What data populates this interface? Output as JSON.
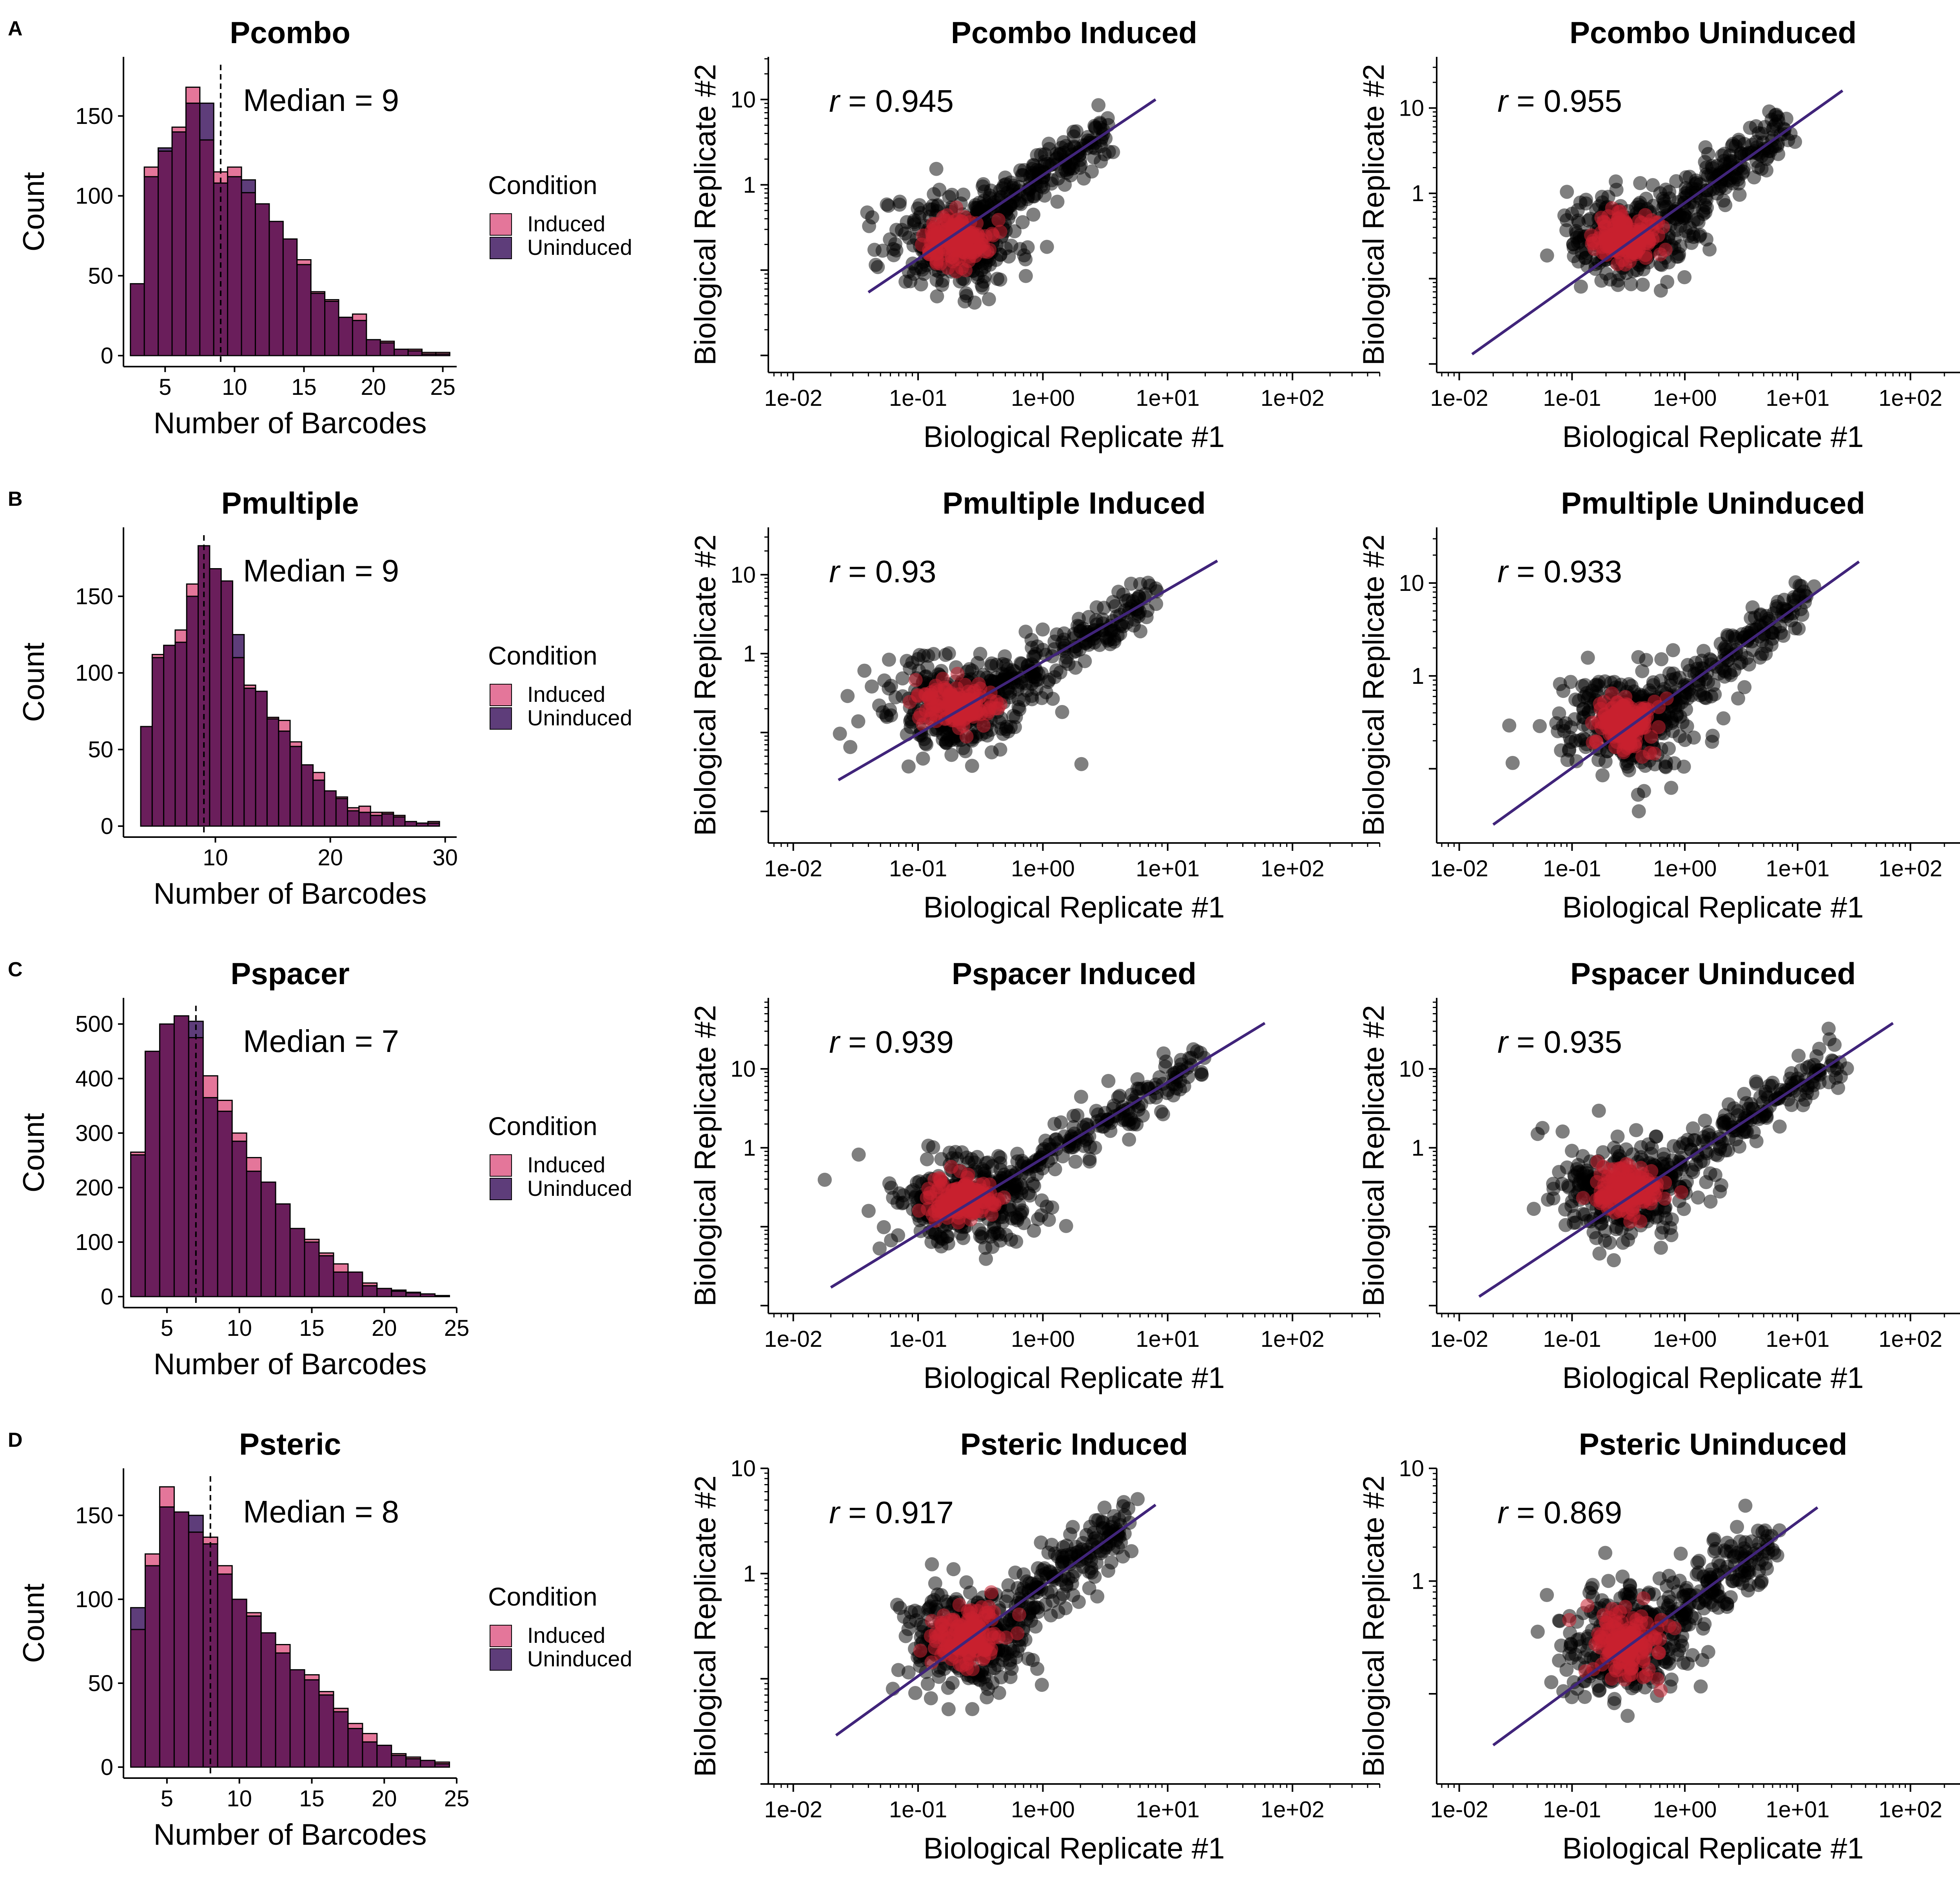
{
  "colors": {
    "induced": "#e4769a",
    "uninduced": "#5e3d7a",
    "overlap": "#6a1e5b",
    "bar_edge": "#000000",
    "point_black": "#000000",
    "point_red": "#c8202f",
    "fit_line": "#40247a"
  },
  "legend": {
    "title": "Condition",
    "items": [
      "Induced",
      "Uninduced"
    ]
  },
  "axes": {
    "hist_x": "Number of Barcodes",
    "hist_y": "Count",
    "scatter_x": "Biological Replicate #1",
    "scatter_y": "Biological Replicate #2"
  },
  "scatter_x_ticks": [
    "1e-02",
    "1e-01",
    "1e+00",
    "1e+01",
    "1e+02"
  ],
  "chart_data": [
    {
      "type": "bar",
      "panel": "A",
      "title": "Pcombo",
      "annotation": "Median = 9",
      "xlabel": "Number of Barcodes",
      "ylabel": "Count",
      "xlim": [
        2,
        26
      ],
      "ylim": [
        0,
        187
      ],
      "median": 9,
      "xticks": [
        5,
        10,
        15,
        20,
        25
      ],
      "yticks": [
        0,
        50,
        100,
        150
      ],
      "bin_start": 2.5,
      "bin_width": 1,
      "series": [
        {
          "name": "Induced",
          "values": [
            45,
            118,
            128,
            143,
            168,
            135,
            115,
            118,
            102,
            95,
            84,
            73,
            60,
            40,
            35,
            24,
            26,
            10,
            9,
            4,
            4,
            2,
            2
          ]
        },
        {
          "name": "Uninduced",
          "values": [
            45,
            112,
            130,
            140,
            158,
            158,
            108,
            112,
            110,
            95,
            84,
            73,
            57,
            39,
            34,
            24,
            22,
            10,
            8,
            4,
            3,
            1,
            1
          ]
        }
      ]
    },
    {
      "type": "scatter",
      "panel": "A",
      "title": "Pcombo Induced",
      "r": "0.945",
      "xlabel": "Biological Replicate #1",
      "ylabel": "Biological Replicate #2",
      "x_log_range": [
        -2.2,
        2.7
      ],
      "y_log_range": [
        -2.2,
        1.5
      ],
      "yticks": [
        1,
        10
      ],
      "fit": [
        [
          0.04,
          0.055
        ],
        [
          8,
          10
        ]
      ],
      "cloud": {
        "center": [
          0.2,
          0.22
        ],
        "x_spread": 0.28,
        "y_spread": 0.28,
        "x_tail": 1.2,
        "y_scatter": 0.16
      }
    },
    {
      "type": "scatter",
      "panel": "A",
      "title": "Pcombo Uninduced",
      "r": "0.955",
      "xlabel": "Biological Replicate #1",
      "ylabel": "Biological Replicate #2",
      "x_log_range": [
        -2.2,
        2.7
      ],
      "y_log_range": [
        -2.1,
        1.6
      ],
      "yticks": [
        1,
        10
      ],
      "fit": [
        [
          0.013,
          0.013
        ],
        [
          25,
          16
        ]
      ],
      "cloud": {
        "center": [
          0.3,
          0.3
        ],
        "x_spread": 0.28,
        "y_spread": 0.26,
        "x_tail": 1.4,
        "y_scatter": 0.16
      }
    },
    {
      "type": "bar",
      "panel": "B",
      "title": "Pmultiple",
      "annotation": "Median = 9",
      "xlabel": "Number of Barcodes",
      "ylabel": "Count",
      "xlim": [
        2,
        31
      ],
      "ylim": [
        0,
        195
      ],
      "median": 9,
      "xticks": [
        10,
        20,
        30
      ],
      "yticks": [
        0,
        50,
        100,
        150
      ],
      "bin_start": 3.5,
      "bin_width": 1,
      "series": [
        {
          "name": "Induced",
          "values": [
            65,
            112,
            118,
            128,
            158,
            183,
            168,
            160,
            110,
            92,
            88,
            71,
            69,
            55,
            40,
            35,
            23,
            19,
            12,
            13,
            9,
            9,
            7,
            3,
            2,
            3
          ]
        },
        {
          "name": "Uninduced",
          "values": [
            65,
            110,
            118,
            120,
            150,
            183,
            168,
            160,
            125,
            90,
            88,
            70,
            62,
            52,
            40,
            30,
            23,
            18,
            10,
            9,
            7,
            8,
            6,
            3,
            2,
            2
          ]
        }
      ]
    },
    {
      "type": "scatter",
      "panel": "B",
      "title": "Pmultiple Induced",
      "r": "0.93",
      "xlabel": "Biological Replicate #1",
      "ylabel": "Biological Replicate #2",
      "x_log_range": [
        -2.2,
        2.7
      ],
      "y_log_range": [
        -2.4,
        1.6
      ],
      "yticks": [
        1,
        10
      ],
      "fit": [
        [
          0.023,
          0.025
        ],
        [
          25,
          15
        ]
      ],
      "cloud": {
        "center": [
          0.2,
          0.22
        ],
        "x_spread": 0.3,
        "y_spread": 0.3,
        "x_tail": 1.6,
        "y_scatter": 0.16
      }
    },
    {
      "type": "scatter",
      "panel": "B",
      "title": "Pmultiple Uninduced",
      "r": "0.933",
      "xlabel": "Biological Replicate #1",
      "ylabel": "Biological Replicate #2",
      "x_log_range": [
        -2.2,
        2.7
      ],
      "y_log_range": [
        -1.8,
        1.6
      ],
      "yticks": [
        1,
        10
      ],
      "fit": [
        [
          0.02,
          0.025
        ],
        [
          35,
          17
        ]
      ],
      "cloud": {
        "center": [
          0.3,
          0.3
        ],
        "x_spread": 0.3,
        "y_spread": 0.28,
        "x_tail": 1.6,
        "y_scatter": 0.16
      }
    },
    {
      "type": "bar",
      "panel": "C",
      "title": "Pspacer",
      "annotation": "Median = 7",
      "xlabel": "Number of Barcodes",
      "ylabel": "Count",
      "xlim": [
        2,
        25
      ],
      "ylim": [
        0,
        548
      ],
      "median": 7,
      "xticks": [
        5,
        10,
        15,
        20,
        25
      ],
      "yticks": [
        0,
        100,
        200,
        300,
        400,
        500
      ],
      "bin_start": 2.5,
      "bin_width": 1,
      "series": [
        {
          "name": "Induced",
          "values": [
            265,
            450,
            500,
            515,
            475,
            405,
            360,
            300,
            255,
            210,
            170,
            125,
            105,
            80,
            60,
            45,
            25,
            15,
            12,
            8,
            5,
            2
          ]
        },
        {
          "name": "Uninduced",
          "values": [
            260,
            450,
            500,
            515,
            505,
            365,
            340,
            285,
            230,
            210,
            170,
            125,
            100,
            75,
            45,
            45,
            20,
            15,
            10,
            7,
            5,
            2
          ]
        }
      ]
    },
    {
      "type": "scatter",
      "panel": "C",
      "title": "Pspacer Induced",
      "r": "0.939",
      "xlabel": "Biological Replicate #1",
      "ylabel": "Biological Replicate #2",
      "x_log_range": [
        -2.2,
        2.7
      ],
      "y_log_range": [
        -2.1,
        1.9
      ],
      "yticks": [
        1,
        10
      ],
      "fit": [
        [
          0.02,
          0.017
        ],
        [
          60,
          38
        ]
      ],
      "cloud": {
        "center": [
          0.22,
          0.23
        ],
        "x_spread": 0.32,
        "y_spread": 0.3,
        "x_tail": 1.9,
        "y_scatter": 0.17
      }
    },
    {
      "type": "scatter",
      "panel": "C",
      "title": "Pspacer Uninduced",
      "r": "0.935",
      "xlabel": "Biological Replicate #1",
      "ylabel": "Biological Replicate #2",
      "x_log_range": [
        -2.2,
        2.7
      ],
      "y_log_range": [
        -2.1,
        1.9
      ],
      "yticks": [
        1,
        10
      ],
      "fit": [
        [
          0.015,
          0.013
        ],
        [
          70,
          38
        ]
      ],
      "cloud": {
        "center": [
          0.3,
          0.28
        ],
        "x_spread": 0.32,
        "y_spread": 0.3,
        "x_tail": 1.9,
        "y_scatter": 0.17
      }
    },
    {
      "type": "bar",
      "panel": "D",
      "title": "Psteric",
      "annotation": "Median = 8",
      "xlabel": "Number of Barcodes",
      "ylabel": "Count",
      "xlim": [
        2,
        25
      ],
      "ylim": [
        0,
        178
      ],
      "median": 8,
      "xticks": [
        5,
        10,
        15,
        20,
        25
      ],
      "yticks": [
        0,
        50,
        100,
        150
      ],
      "bin_start": 2.5,
      "bin_width": 1,
      "series": [
        {
          "name": "Induced",
          "values": [
            82,
            127,
            167,
            152,
            140,
            137,
            120,
            100,
            92,
            80,
            73,
            58,
            55,
            45,
            35,
            26,
            20,
            13,
            8,
            6,
            4,
            3
          ]
        },
        {
          "name": "Uninduced",
          "values": [
            95,
            120,
            155,
            152,
            150,
            133,
            115,
            100,
            90,
            80,
            68,
            58,
            52,
            43,
            33,
            23,
            15,
            13,
            7,
            5,
            4,
            2
          ]
        }
      ]
    },
    {
      "type": "scatter",
      "panel": "D",
      "title": "Psteric Induced",
      "r": "0.917",
      "xlabel": "Biological Replicate #1",
      "ylabel": "Biological Replicate #2",
      "x_log_range": [
        -2.2,
        2.7
      ],
      "y_log_range": [
        -2.0,
        1.0
      ],
      "yticks": [
        1,
        10
      ],
      "fit": [
        [
          0.022,
          0.029
        ],
        [
          8,
          4.5
        ]
      ],
      "cloud": {
        "center": [
          0.25,
          0.25
        ],
        "x_spread": 0.26,
        "y_spread": 0.25,
        "x_tail": 1.3,
        "y_scatter": 0.16
      }
    },
    {
      "type": "scatter",
      "panel": "D",
      "title": "Psteric Uninduced",
      "r": "0.869",
      "xlabel": "Biological Replicate #1",
      "ylabel": "Biological Replicate #2",
      "x_log_range": [
        -2.2,
        2.7
      ],
      "y_log_range": [
        -1.8,
        1.0
      ],
      "yticks": [
        1,
        10
      ],
      "fit": [
        [
          0.02,
          0.035
        ],
        [
          15,
          4.5
        ]
      ],
      "cloud": {
        "center": [
          0.3,
          0.28
        ],
        "x_spread": 0.26,
        "y_spread": 0.25,
        "x_tail": 1.3,
        "y_scatter": 0.18
      }
    }
  ]
}
